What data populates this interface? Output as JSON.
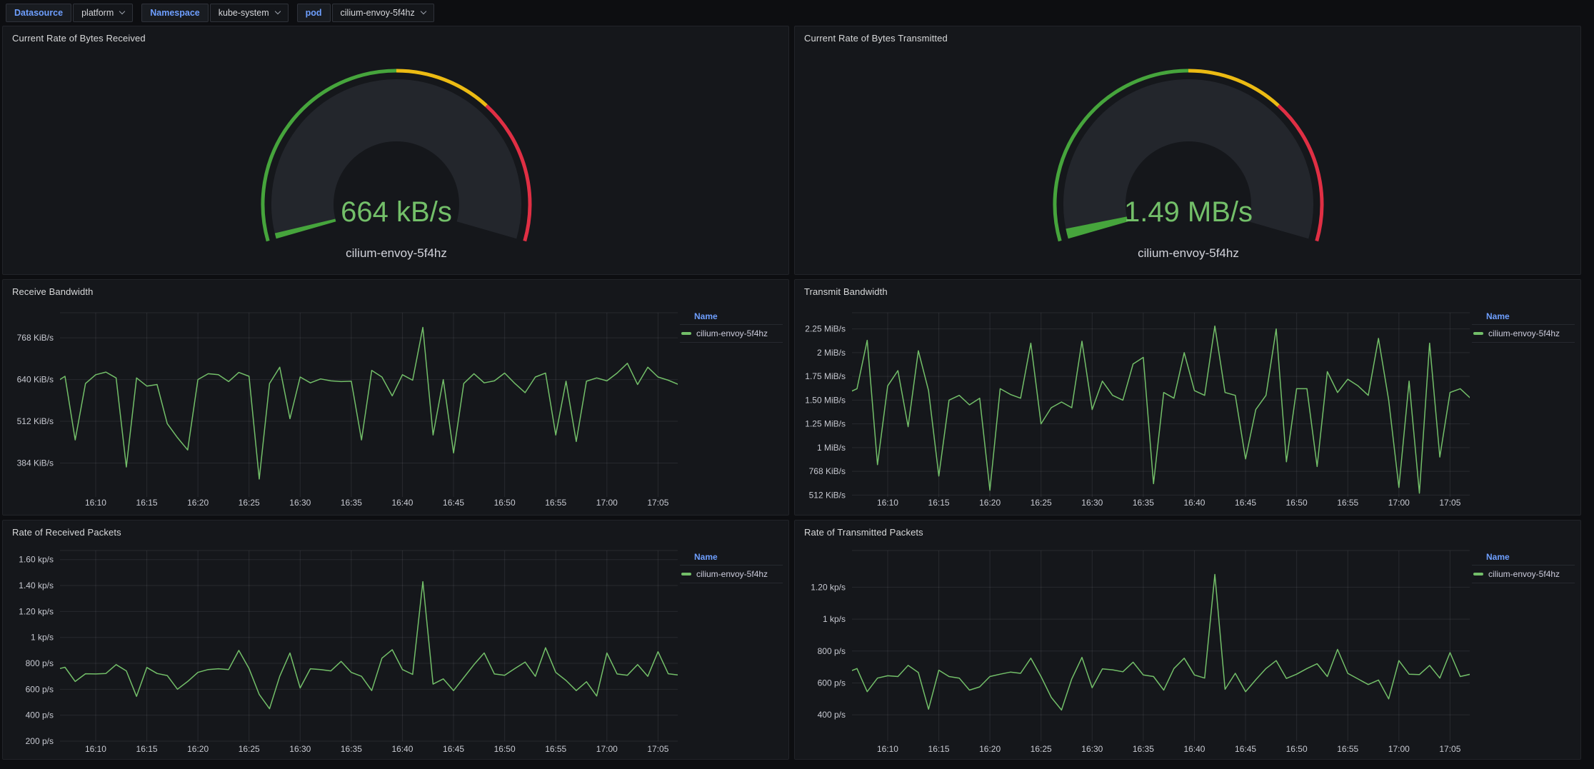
{
  "topbar": {
    "variables": [
      {
        "label": "Datasource",
        "value": "platform"
      },
      {
        "label": "Namespace",
        "value": "kube-system"
      },
      {
        "label": "pod",
        "value": "cilium-envoy-5f4hz"
      }
    ]
  },
  "legend": {
    "header": "Name",
    "series": "cilium-envoy-5f4hz"
  },
  "colors": {
    "line_green": "#73bf69",
    "gauge_band": "#23262c",
    "blue_accent": "#6e9fff"
  },
  "chart_data": [
    {
      "type": "gauge",
      "title": "Current Rate of Bytes Received",
      "value_text": "664 kB/s",
      "series": "cilium-envoy-5f4hz",
      "thresholds": [
        {
          "color": "#46a53c",
          "pct": 0.5
        },
        {
          "color": "#ecbb13",
          "pct": 0.2
        },
        {
          "color": "#e02f44",
          "pct": 0.3
        }
      ],
      "value_pct": 0.012,
      "value_color": "#46a53c"
    },
    {
      "type": "gauge",
      "title": "Current Rate of Bytes Transmitted",
      "value_text": "1.49 MB/s",
      "series": "cilium-envoy-5f4hz",
      "thresholds": [
        {
          "color": "#46a53c",
          "pct": 0.5
        },
        {
          "color": "#ecbb13",
          "pct": 0.2
        },
        {
          "color": "#e02f44",
          "pct": 0.3
        }
      ],
      "value_pct": 0.022,
      "value_color": "#46a53c"
    },
    {
      "type": "line",
      "title": "Receive Bandwidth",
      "series_name": "cilium-envoy-5f4hz",
      "unit": "KiB/s",
      "x_start": "16:06",
      "x_step_minutes": 1,
      "ylim": [
        280,
        845
      ],
      "yticks": [
        {
          "v": 768,
          "label": "768 KiB/s"
        },
        {
          "v": 640,
          "label": "640 KiB/s"
        },
        {
          "v": 512,
          "label": "512 KiB/s"
        },
        {
          "v": 384,
          "label": "384 KiB/s"
        }
      ],
      "tick_minutes": [
        4,
        9,
        14,
        19,
        24,
        29,
        34,
        39,
        44,
        49,
        54,
        59
      ],
      "tick_labels": [
        "16:10",
        "16:15",
        "16:20",
        "16:25",
        "16:30",
        "16:35",
        "16:40",
        "16:45",
        "16:50",
        "16:55",
        "17:00",
        "17:05"
      ],
      "values": [
        630,
        650,
        455,
        628,
        655,
        663,
        645,
        372,
        645,
        620,
        625,
        505,
        462,
        424,
        640,
        658,
        655,
        634,
        662,
        650,
        335,
        628,
        678,
        520,
        648,
        630,
        642,
        636,
        634,
        635,
        455,
        668,
        648,
        590,
        655,
        638,
        800,
        470,
        640,
        415,
        628,
        658,
        630,
        636,
        660,
        628,
        600,
        648,
        660,
        470,
        635,
        450,
        635,
        645,
        636,
        660,
        690,
        625,
        678,
        648,
        638,
        625
      ]
    },
    {
      "type": "line",
      "title": "Transmit Bandwidth",
      "series_name": "cilium-envoy-5f4hz",
      "unit": "MiB/s",
      "x_start": "16:06",
      "x_step_minutes": 1,
      "ylim": [
        0.48,
        2.42
      ],
      "yticks": [
        {
          "v": 2.25,
          "label": "2.25 MiB/s"
        },
        {
          "v": 2.0,
          "label": "2 MiB/s"
        },
        {
          "v": 1.75,
          "label": "1.75 MiB/s"
        },
        {
          "v": 1.5,
          "label": "1.50 MiB/s"
        },
        {
          "v": 1.25,
          "label": "1.25 MiB/s"
        },
        {
          "v": 1.0,
          "label": "1 MiB/s"
        },
        {
          "v": 0.75,
          "label": "768 KiB/s"
        },
        {
          "v": 0.5,
          "label": "512 KiB/s"
        }
      ],
      "tick_minutes": [
        4,
        9,
        14,
        19,
        24,
        29,
        34,
        39,
        44,
        49,
        54,
        59
      ],
      "tick_labels": [
        "16:10",
        "16:15",
        "16:20",
        "16:25",
        "16:30",
        "16:35",
        "16:40",
        "16:45",
        "16:50",
        "16:55",
        "17:00",
        "17:05"
      ],
      "values": [
        1.57,
        1.62,
        2.13,
        0.82,
        1.65,
        1.81,
        1.22,
        2.02,
        1.6,
        0.7,
        1.5,
        1.55,
        1.45,
        1.52,
        0.55,
        1.62,
        1.56,
        1.52,
        2.1,
        1.25,
        1.42,
        1.48,
        1.42,
        2.12,
        1.4,
        1.7,
        1.55,
        1.5,
        1.88,
        1.95,
        0.62,
        1.58,
        1.52,
        2.0,
        1.6,
        1.55,
        2.28,
        1.58,
        1.55,
        0.88,
        1.4,
        1.55,
        2.25,
        0.85,
        1.62,
        1.62,
        0.8,
        1.8,
        1.58,
        1.72,
        1.65,
        1.55,
        2.15,
        1.5,
        0.58,
        1.7,
        0.52,
        2.1,
        0.9,
        1.58,
        1.62,
        1.52
      ]
    },
    {
      "type": "line",
      "title": "Rate of Received Packets",
      "series_name": "cilium-envoy-5f4hz",
      "unit": "p/s",
      "x_start": "16:06",
      "x_step_minutes": 1,
      "ylim": [
        200,
        1670
      ],
      "yticks": [
        {
          "v": 1600,
          "label": "1.60 kp/s"
        },
        {
          "v": 1400,
          "label": "1.40 kp/s"
        },
        {
          "v": 1200,
          "label": "1.20 kp/s"
        },
        {
          "v": 1000,
          "label": "1 kp/s"
        },
        {
          "v": 800,
          "label": "800 p/s"
        },
        {
          "v": 600,
          "label": "600 p/s"
        },
        {
          "v": 400,
          "label": "400 p/s"
        },
        {
          "v": 200,
          "label": "200 p/s"
        }
      ],
      "tick_minutes": [
        4,
        9,
        14,
        19,
        24,
        29,
        34,
        39,
        44,
        49,
        54,
        59
      ],
      "tick_labels": [
        "16:10",
        "16:15",
        "16:20",
        "16:25",
        "16:30",
        "16:35",
        "16:40",
        "16:45",
        "16:50",
        "16:55",
        "17:00",
        "17:05"
      ],
      "values": [
        750,
        770,
        660,
        720,
        718,
        722,
        790,
        742,
        545,
        768,
        722,
        706,
        600,
        660,
        730,
        752,
        758,
        752,
        900,
        760,
        560,
        450,
        700,
        880,
        610,
        758,
        752,
        742,
        815,
        730,
        700,
        590,
        840,
        905,
        752,
        715,
        1430,
        640,
        680,
        590,
        690,
        790,
        880,
        718,
        708,
        760,
        810,
        700,
        920,
        730,
        668,
        590,
        658,
        548,
        880,
        718,
        708,
        790,
        700,
        890,
        720,
        710
      ]
    },
    {
      "type": "line",
      "title": "Rate of Transmitted Packets",
      "series_name": "cilium-envoy-5f4hz",
      "unit": "p/s",
      "x_start": "16:06",
      "x_step_minutes": 1,
      "ylim": [
        235,
        1430
      ],
      "yticks": [
        {
          "v": 1200,
          "label": "1.20 kp/s"
        },
        {
          "v": 1000,
          "label": "1 kp/s"
        },
        {
          "v": 800,
          "label": "800 p/s"
        },
        {
          "v": 600,
          "label": "600 p/s"
        },
        {
          "v": 400,
          "label": "400 p/s"
        }
      ],
      "tick_minutes": [
        4,
        9,
        14,
        19,
        24,
        29,
        34,
        39,
        44,
        49,
        54,
        59
      ],
      "tick_labels": [
        "16:10",
        "16:15",
        "16:20",
        "16:25",
        "16:30",
        "16:35",
        "16:40",
        "16:45",
        "16:50",
        "16:55",
        "17:00",
        "17:05"
      ],
      "values": [
        665,
        690,
        545,
        630,
        645,
        640,
        710,
        665,
        435,
        680,
        640,
        630,
        555,
        575,
        640,
        655,
        668,
        660,
        755,
        640,
        510,
        430,
        625,
        760,
        570,
        688,
        682,
        670,
        730,
        650,
        640,
        555,
        690,
        755,
        650,
        630,
        1280,
        560,
        660,
        545,
        620,
        690,
        740,
        628,
        655,
        690,
        720,
        640,
        810,
        660,
        625,
        590,
        618,
        500,
        740,
        655,
        652,
        710,
        630,
        790,
        640,
        655
      ]
    }
  ]
}
